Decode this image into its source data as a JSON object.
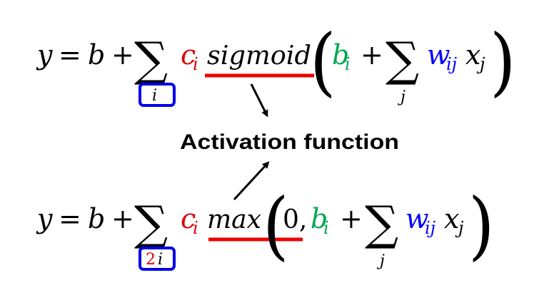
{
  "colors": {
    "black": "#000000",
    "red": "#e00000",
    "green": "#00a651",
    "blue": "#0000ff",
    "box_blue": "#0000e6",
    "underline_red": "#ee0000"
  },
  "eq1": {
    "y": "y",
    "eq": "=",
    "b": "b",
    "plus1": "+",
    "sum": "∑",
    "sum_index": "i",
    "c": "c",
    "c_sub": "i",
    "func": "sigmoid",
    "lparen": "(",
    "b_inner": "b",
    "b_inner_sub": "i",
    "plus2": "+",
    "sum2": "∑",
    "sum2_index": "j",
    "w": "w",
    "w_sub": "ij",
    "x": "x",
    "x_sub": "j",
    "rparen": ")"
  },
  "label": {
    "text": "Activation function"
  },
  "eq2": {
    "y": "y",
    "eq": "=",
    "b": "b",
    "plus1": "+",
    "sum": "∑",
    "sum_index_num": "2",
    "sum_index_var": "i",
    "c": "c",
    "c_sub": "i",
    "func": "max",
    "lparen": "(",
    "zero": "0,",
    "b_inner": "b",
    "b_inner_sub": "i",
    "plus2": "+",
    "sum2": "∑",
    "sum2_index": "j",
    "w": "w",
    "w_sub": "ij",
    "x": "x",
    "x_sub": "j",
    "rparen": ")"
  }
}
